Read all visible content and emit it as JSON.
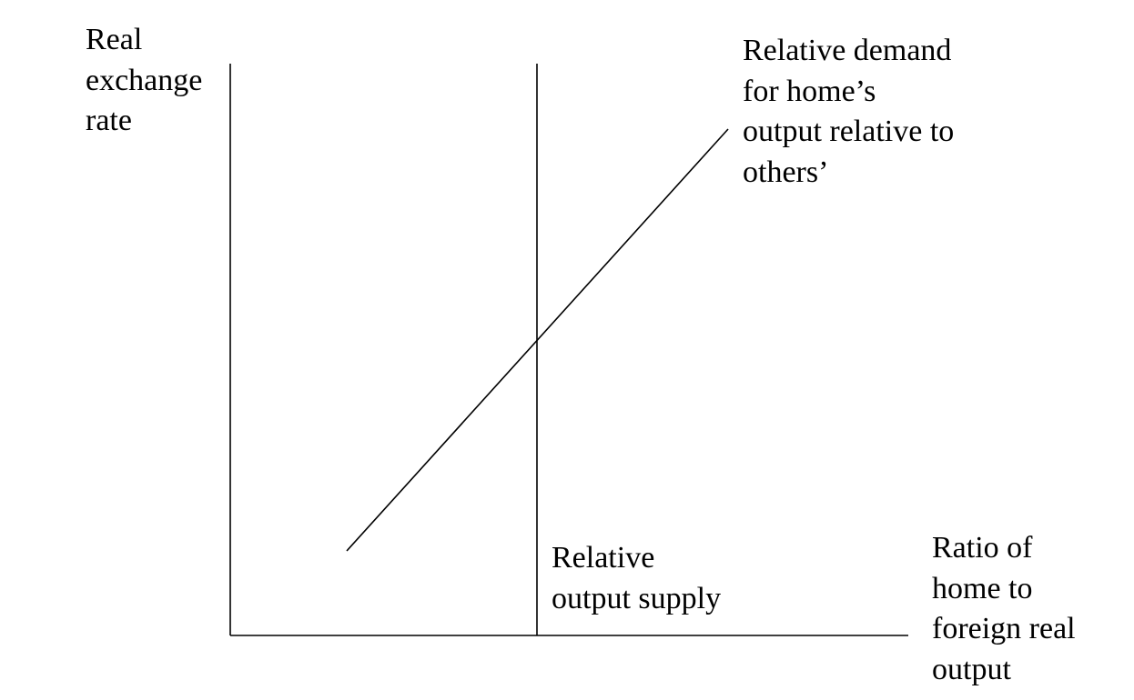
{
  "diagram": {
    "y_axis_label": [
      "Real",
      "exchange",
      "rate"
    ],
    "x_axis_label": [
      "Ratio of",
      "home to",
      "foreign real",
      "output"
    ],
    "demand_curve_label": [
      "Relative demand",
      "for home’s",
      "output relative to",
      "others’"
    ],
    "supply_curve_label": [
      "Relative",
      "output supply"
    ],
    "colors": {
      "line": "#000000",
      "background": "#ffffff"
    }
  }
}
